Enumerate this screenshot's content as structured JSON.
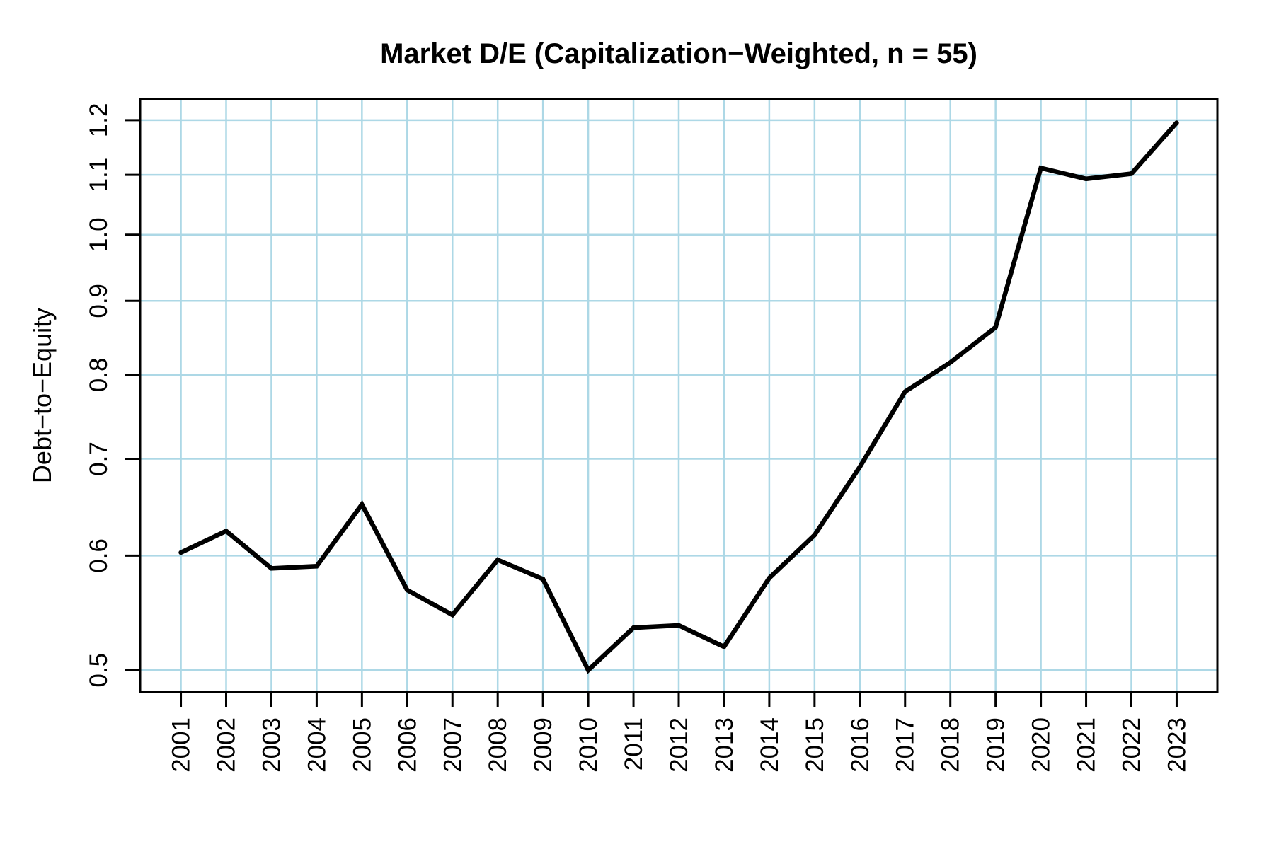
{
  "chart_data": {
    "type": "line",
    "title": "Market D/E (Capitalization−Weighted, n = 55)",
    "ylabel": "Debt−to−Equity",
    "xlabel": "",
    "series_name": "Market D/E (capitalization-weighted)",
    "n_companies": 55,
    "x": [
      2001,
      2002,
      2003,
      2004,
      2005,
      2006,
      2007,
      2008,
      2009,
      2010,
      2011,
      2012,
      2013,
      2014,
      2015,
      2016,
      2017,
      2018,
      2019,
      2020,
      2021,
      2022,
      2023
    ],
    "values": [
      0.603,
      0.624,
      0.588,
      0.59,
      0.651,
      0.568,
      0.546,
      0.596,
      0.578,
      0.5,
      0.535,
      0.537,
      0.519,
      0.579,
      0.62,
      0.691,
      0.779,
      0.816,
      0.863,
      1.112,
      1.093,
      1.102,
      1.195
    ],
    "x_tick_labels": [
      "2001",
      "2002",
      "2003",
      "2004",
      "2005",
      "2006",
      "2007",
      "2008",
      "2009",
      "2010",
      "2011",
      "2012",
      "2013",
      "2014",
      "2015",
      "2016",
      "2017",
      "2018",
      "2019",
      "2020",
      "2021",
      "2022",
      "2023"
    ],
    "y_ticks": [
      0.5,
      0.6,
      0.7,
      0.8,
      0.9,
      1.0,
      1.1,
      1.2
    ],
    "y_tick_labels": [
      "0.5",
      "0.6",
      "0.7",
      "0.8",
      "0.9",
      "1.0",
      "1.1",
      "1.2"
    ],
    "y_scale": "log10",
    "ylim": [
      0.483,
      1.241
    ],
    "xlim": [
      2000.1,
      2023.9
    ],
    "grid": true,
    "legend": "none",
    "colors": {
      "line": "#000000",
      "grid": "#ADD8E6",
      "axis": "#000000",
      "background": "#FFFFFF",
      "text": "#000000"
    }
  }
}
